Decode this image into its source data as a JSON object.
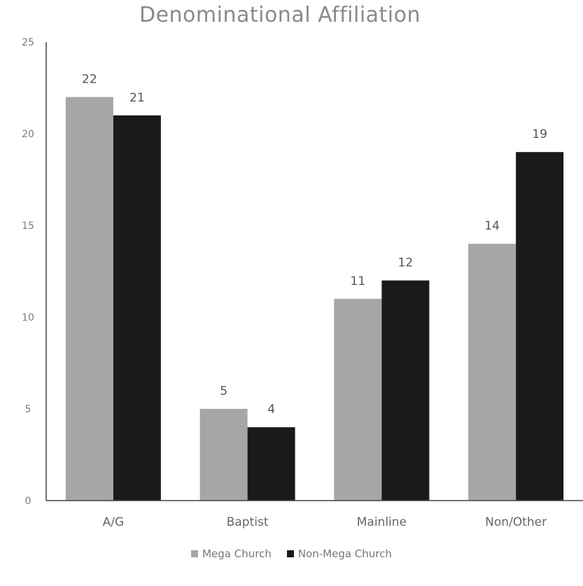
{
  "chart_data": {
    "type": "bar",
    "title": "Denominational Affiliation",
    "categories": [
      "A/G",
      "Baptist",
      "Mainline",
      "Non/Other"
    ],
    "series": [
      {
        "name": "Mega Church",
        "values": [
          22,
          5,
          11,
          14
        ],
        "color": "#a6a6a6"
      },
      {
        "name": "Non-Mega Church",
        "values": [
          21,
          4,
          12,
          19
        ],
        "color": "#1a1a1a"
      }
    ],
    "ylim": [
      0,
      25
    ],
    "yticks": [
      0,
      5,
      10,
      15,
      20,
      25
    ],
    "grid": false,
    "legend": "bottom"
  }
}
